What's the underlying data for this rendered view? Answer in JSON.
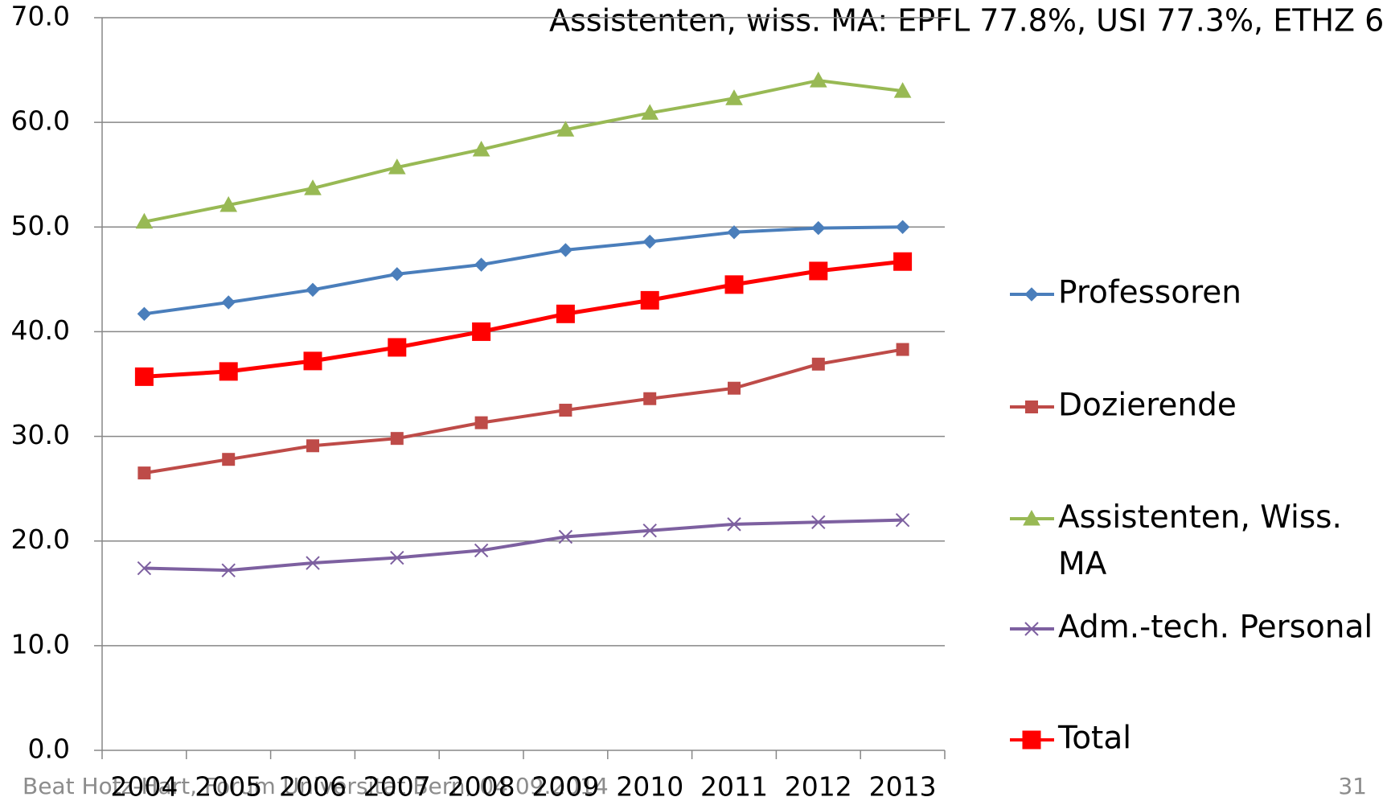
{
  "chart_data": {
    "type": "line",
    "annotation": "Assistenten, wiss. MA: EPFL 77.8%, USI 77.3%, ETHZ 6",
    "categories": [
      "2004",
      "2005",
      "2006",
      "2007",
      "2008",
      "2009",
      "2010",
      "2011",
      "2012",
      "2013"
    ],
    "series": [
      {
        "name": "Professoren",
        "color": "#4a7ebb",
        "marker": "diamond",
        "values": [
          41.7,
          42.8,
          44.0,
          45.5,
          46.4,
          47.8,
          48.6,
          49.5,
          49.9,
          50.0
        ]
      },
      {
        "name": "Dozierende",
        "color": "#be4b48",
        "marker": "square",
        "values": [
          26.5,
          27.8,
          29.1,
          29.8,
          31.3,
          32.5,
          33.6,
          34.6,
          36.9,
          38.3
        ]
      },
      {
        "name": "Assistenten, Wiss. MA",
        "color": "#98b954",
        "marker": "triangle",
        "values": [
          50.5,
          52.1,
          53.7,
          55.7,
          57.4,
          59.3,
          60.9,
          62.3,
          64.0,
          63.0
        ]
      },
      {
        "name": "Adm.-tech. Personal",
        "color": "#7d60a0",
        "marker": "x",
        "values": [
          17.4,
          17.2,
          17.9,
          18.4,
          19.1,
          20.4,
          21.0,
          21.6,
          21.8,
          22.0
        ]
      },
      {
        "name": "Total",
        "color": "#ff0000",
        "marker": "bigsquare",
        "values": [
          35.7,
          36.2,
          37.2,
          38.5,
          40.0,
          41.7,
          43.0,
          44.5,
          45.8,
          46.7
        ]
      }
    ],
    "ylim": [
      0,
      70
    ],
    "yticks": [
      {
        "value": 0,
        "label": "0.0"
      },
      {
        "value": 10,
        "label": "10.0"
      },
      {
        "value": 20,
        "label": "20.0"
      },
      {
        "value": 30,
        "label": "30.0"
      },
      {
        "value": 40,
        "label": "40.0"
      },
      {
        "value": 50,
        "label": "50.0"
      },
      {
        "value": 60,
        "label": "60.0"
      },
      {
        "value": 70,
        "label": "70.0"
      }
    ],
    "grid": true,
    "legend": "right"
  },
  "footer": {
    "author": "Beat Hotz-Hart, Forum Universität Bern, 04.09.2014",
    "page": "31"
  }
}
